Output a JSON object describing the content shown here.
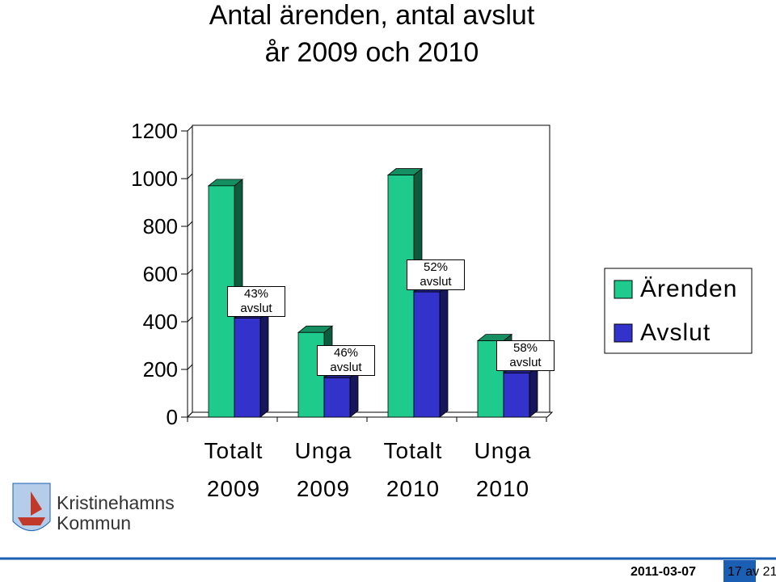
{
  "chart_data": {
    "type": "bar3d",
    "title": [
      "Antal ärenden, antal avslut",
      "år 2009 och 2010"
    ],
    "categories": [
      "Totalt 2009",
      "Unga 2009",
      "Totalt 2010",
      "Unga 2010"
    ],
    "series": [
      {
        "name": "Ärenden",
        "color": "#1ecb8c",
        "values": [
          970,
          355,
          1015,
          320
        ]
      },
      {
        "name": "Avslut",
        "color": "#3333cc",
        "values": [
          415,
          165,
          525,
          185
        ]
      }
    ],
    "annotations": [
      "43% avslut",
      "46% avslut",
      "52% avslut",
      "58% avslut"
    ],
    "ylim": [
      0,
      1200
    ],
    "yticks": [
      0,
      200,
      400,
      600,
      800,
      1000,
      1200
    ],
    "legend": "right"
  },
  "logo": [
    "Kristinehamns",
    "Kommun"
  ],
  "footer": {
    "date": "2011-03-07",
    "page": "17 av 21"
  }
}
